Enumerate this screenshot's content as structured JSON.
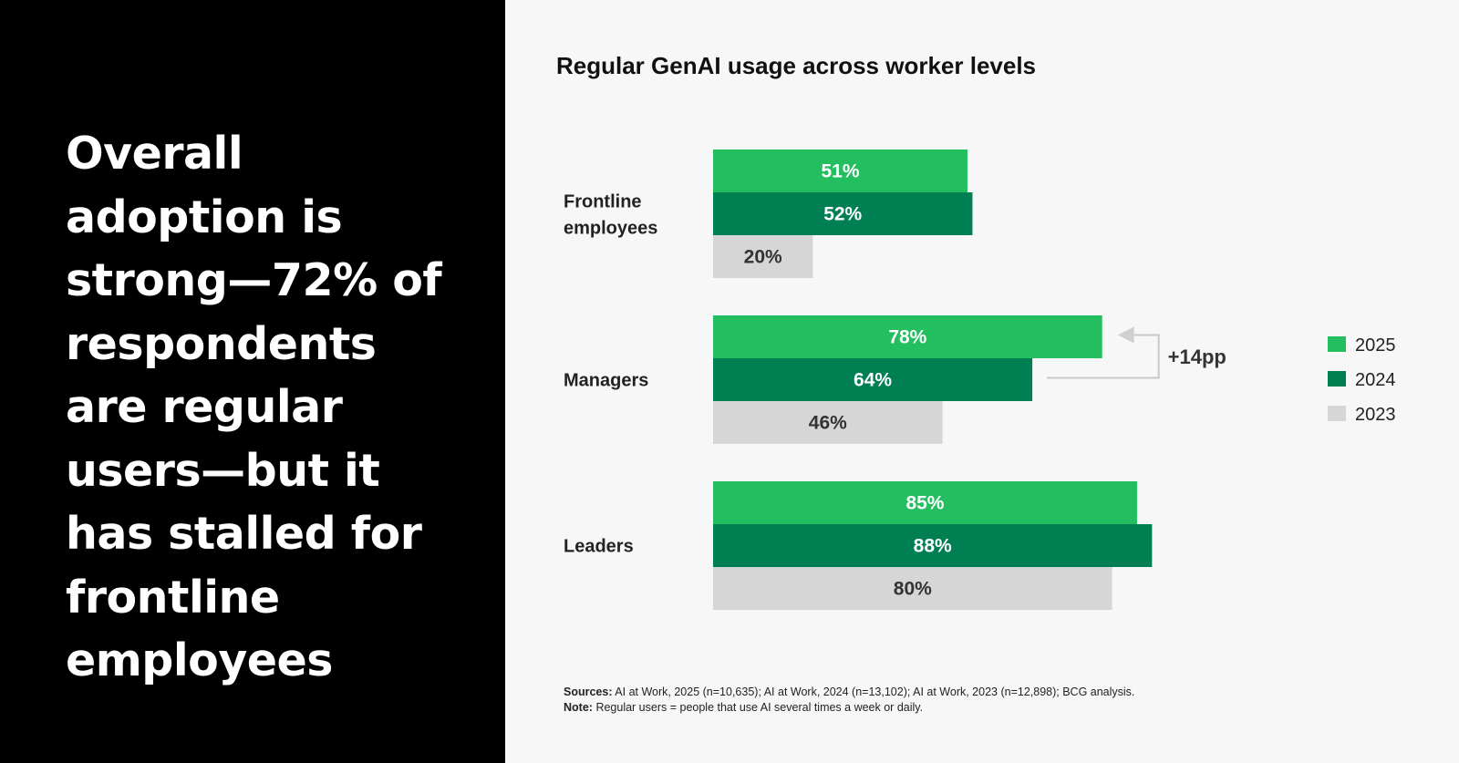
{
  "headline": "Overall adoption is strong—72% of respondents are regular users—but it has stalled for frontline employees",
  "chart_data": {
    "type": "bar",
    "orientation": "horizontal",
    "title": "Regular GenAI usage across worker levels",
    "categories": [
      "Frontline employees",
      "Managers",
      "Leaders"
    ],
    "series": [
      {
        "name": "2025",
        "values": [
          51,
          78,
          85
        ],
        "color": "#22be60",
        "label_color": "#ffffff"
      },
      {
        "name": "2024",
        "values": [
          52,
          64,
          88
        ],
        "color": "#007f53",
        "label_color": "#ffffff"
      },
      {
        "name": "2023",
        "values": [
          20,
          46,
          80
        ],
        "color": "#d6d6d6",
        "label_color": "#333333"
      }
    ],
    "value_suffix": "%",
    "xlim": [
      0,
      100
    ],
    "legend_position": "right",
    "annotation": {
      "text": "+14pp",
      "category": "Managers",
      "from_series": "2024",
      "to_series": "2025"
    },
    "footnote": {
      "sources_label": "Sources:",
      "sources_text": "AI at Work, 2025 (n=10,635);  AI at Work, 2024 (n=13,102); AI at Work, 2023 (n=12,898); BCG analysis.",
      "note_label": "Note:",
      "note_text": "Regular users = people that use AI several times a week or daily."
    }
  }
}
